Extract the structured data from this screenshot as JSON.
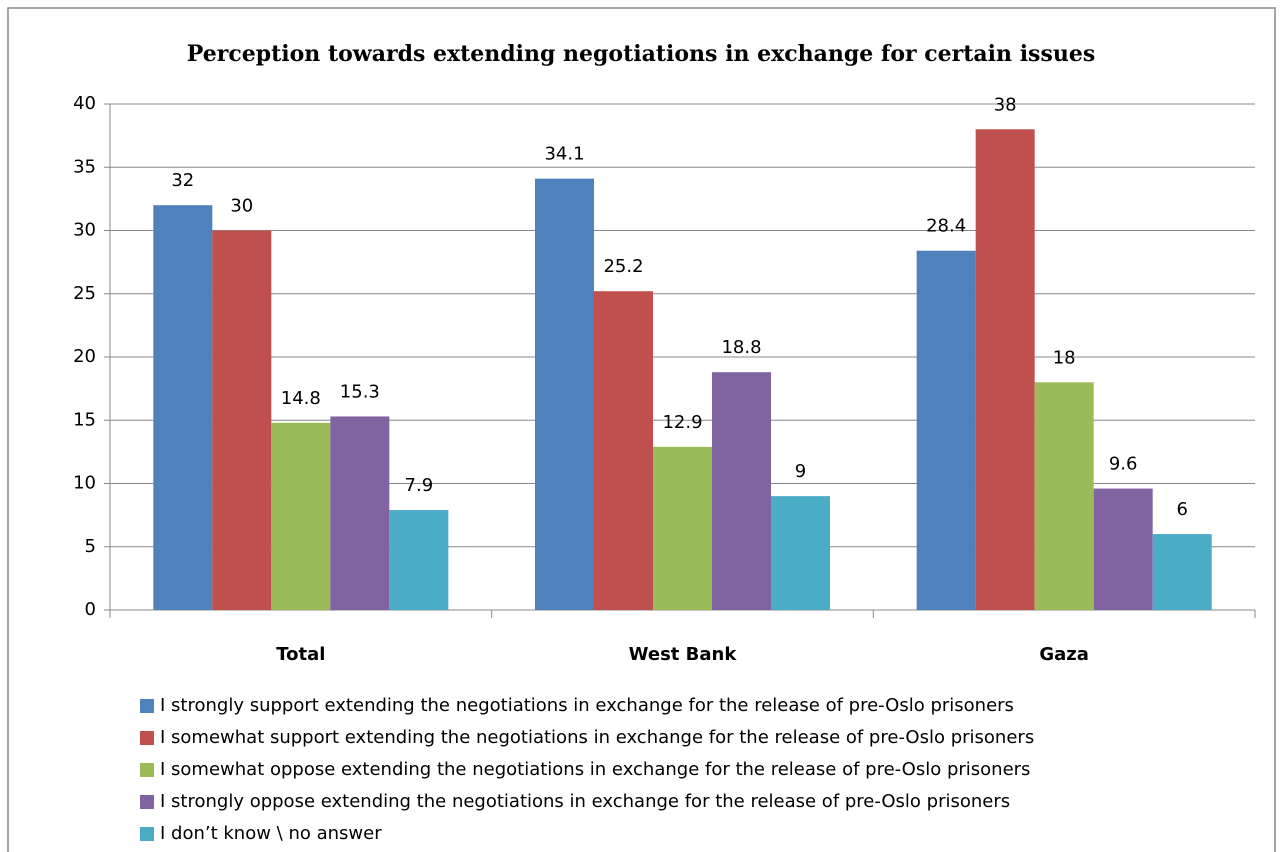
{
  "chart_data": {
    "type": "bar",
    "title": "Perception towards extending negotiations in exchange for certain issues",
    "categories": [
      "Total",
      "West Bank",
      "Gaza"
    ],
    "series": [
      {
        "name": "I strongly support extending the negotiations in exchange for the release of pre-Oslo prisoners",
        "color": "#4f81bd",
        "values": [
          32,
          34.1,
          28.4
        ]
      },
      {
        "name": "I somewhat support extending the negotiations in exchange for the release of pre-Oslo prisoners",
        "color": "#c0504d",
        "values": [
          30,
          25.2,
          38
        ]
      },
      {
        "name": "I somewhat oppose extending the negotiations in exchange for the release of pre-Oslo prisoners",
        "color": "#9bbb59",
        "values": [
          14.8,
          12.9,
          18
        ]
      },
      {
        "name": "I strongly oppose extending the negotiations in exchange for the release of pre-Oslo prisoners",
        "color": "#8064a2",
        "values": [
          15.3,
          18.8,
          9.6
        ]
      },
      {
        "name": "I don’t know \\ no answer",
        "color": "#4bacc6",
        "values": [
          7.9,
          9,
          6
        ]
      }
    ],
    "ylim": [
      0,
      40
    ],
    "yticks": [
      0,
      5,
      10,
      15,
      20,
      25,
      30,
      35,
      40
    ],
    "grid": true,
    "legend": "bottom"
  }
}
